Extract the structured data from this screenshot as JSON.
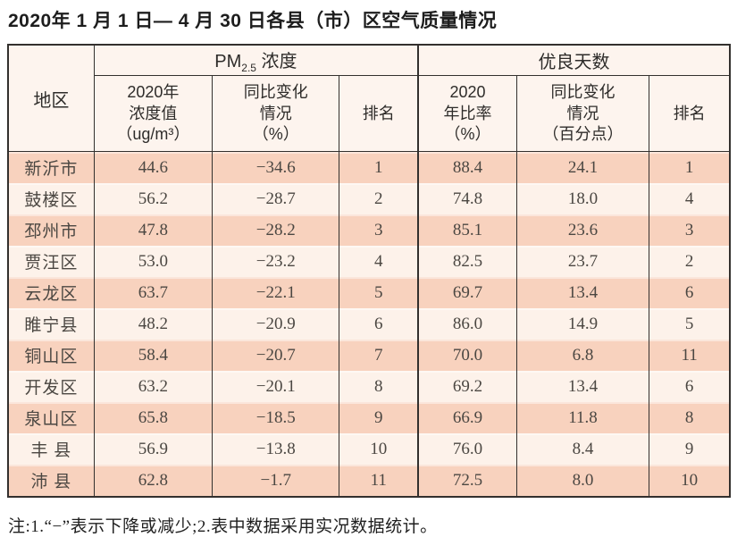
{
  "page": {
    "title": "2020年 1 月 1 日— 4 月 30 日各县（市）区空气质量情况",
    "footnote": "注:1.“−”表示下降或减少;2.表中数据采用实况数据统计。"
  },
  "colors": {
    "row_dark": "#f8d2be",
    "row_light": "#fdf2ea",
    "header_bg": "#fdf4ee",
    "border": "#33302e"
  },
  "table": {
    "region_header": "地区",
    "group_pm": {
      "text": "PM",
      "sub": "2.5",
      "rest": " 浓度"
    },
    "group_days": "优良天数",
    "subheaders": {
      "pm_value": [
        "2020年",
        "浓度值",
        "（ug/m³）"
      ],
      "pm_change": [
        "同比变化",
        "情况",
        "（%）"
      ],
      "pm_rank": "排名",
      "days_rate": [
        "2020",
        "年比率",
        "（%）"
      ],
      "days_change": [
        "同比变化",
        "情况",
        "（百分点）"
      ],
      "days_rank": "排名"
    },
    "rows": [
      [
        "新沂市",
        "44.6",
        "−34.6",
        "1",
        "88.4",
        "24.1",
        "1"
      ],
      [
        "鼓楼区",
        "56.2",
        "−28.7",
        "2",
        "74.8",
        "18.0",
        "4"
      ],
      [
        "邳州市",
        "47.8",
        "−28.2",
        "3",
        "85.1",
        "23.6",
        "3"
      ],
      [
        "贾汪区",
        "53.0",
        "−23.2",
        "4",
        "82.5",
        "23.7",
        "2"
      ],
      [
        "云龙区",
        "63.7",
        "−22.1",
        "5",
        "69.7",
        "13.4",
        "6"
      ],
      [
        "睢宁县",
        "48.2",
        "−20.9",
        "6",
        "86.0",
        "14.9",
        "5"
      ],
      [
        "铜山区",
        "58.4",
        "−20.7",
        "7",
        "70.0",
        "6.8",
        "11"
      ],
      [
        "开发区",
        "63.2",
        "−20.1",
        "8",
        "69.2",
        "13.4",
        "6"
      ],
      [
        "泉山区",
        "65.8",
        "−18.5",
        "9",
        "66.9",
        "11.8",
        "8"
      ],
      [
        "丰 县",
        "56.9",
        "−13.8",
        "10",
        "76.0",
        "8.4",
        "9"
      ],
      [
        "沛 县",
        "62.8",
        "−1.7",
        "11",
        "72.5",
        "8.0",
        "10"
      ]
    ]
  }
}
